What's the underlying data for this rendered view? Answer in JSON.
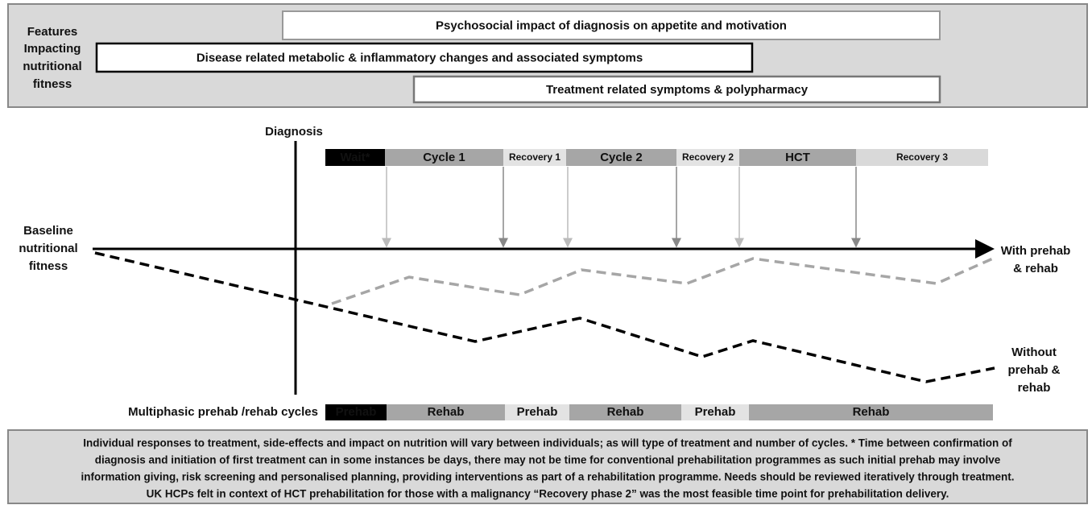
{
  "features": {
    "label": [
      "Features",
      "Impacting",
      "nutritional",
      "fitness"
    ],
    "items": [
      "Psychosocial impact of diagnosis on appetite and motivation",
      "Disease related metabolic & inflammatory changes and associated symptoms",
      "Treatment related symptoms & polypharmacy"
    ]
  },
  "diagnosis": "Diagnosis",
  "phases": [
    "Wait*",
    "Cycle 1",
    "Recovery 1",
    "Cycle 2",
    "Recovery 2",
    "HCT",
    "Recovery 3"
  ],
  "baseline": [
    "Baseline",
    "nutritional",
    "fitness"
  ],
  "with_label": [
    "With prehab",
    "& rehab"
  ],
  "without_label": [
    "Without",
    "prehab &",
    "rehab"
  ],
  "cycles": {
    "label": "Multiphasic prehab /rehab cycles",
    "items": [
      "Prehab",
      "Rehab",
      "Prehab",
      "Rehab",
      "Prehab",
      "Rehab"
    ]
  },
  "footnote": [
    "Individual responses to treatment, side-effects and impact on nutrition will vary between individuals; as will type of treatment and number of cycles. * Time between confirmation of",
    "diagnosis and initiation of first treatment can in some instances be days, there may not be time for conventional prehabilitation programmes as such initial prehab may involve",
    "information giving, risk screening and personalised planning, providing interventions as part of a rehabilitation programme. Needs should be reviewed iteratively through treatment.",
    "UK HCPs felt in context of HCT prehabilitation for those with a malignancy “Recovery phase 2” was the most feasible time point for prehabilitation delivery."
  ]
}
